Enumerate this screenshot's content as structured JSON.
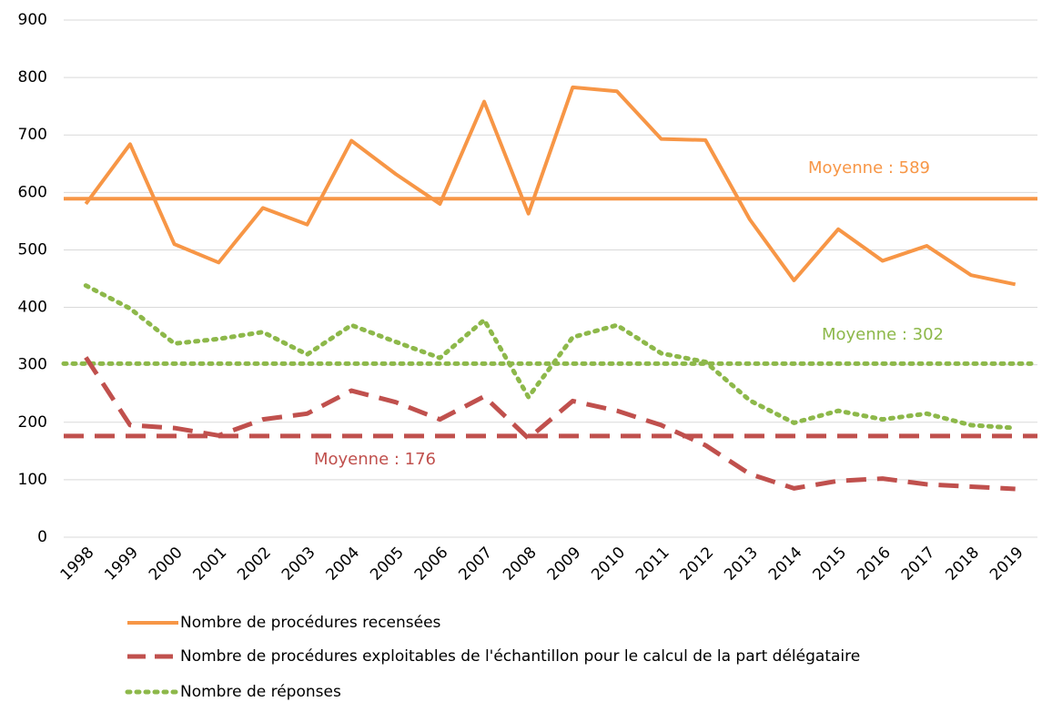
{
  "chart_data": {
    "type": "line",
    "categories": [
      "1998",
      "1999",
      "2000",
      "2001",
      "2002",
      "2003",
      "2004",
      "2005",
      "2006",
      "2007",
      "2008",
      "2009",
      "2010",
      "2011",
      "2012",
      "2013",
      "2014",
      "2015",
      "2016",
      "2017",
      "2018",
      "2019"
    ],
    "series": [
      {
        "name": "Nombre de procédures recensées",
        "color": "#f79646",
        "dash": "solid",
        "values": [
          580,
          684,
          510,
          478,
          573,
          544,
          690,
          632,
          580,
          758,
          563,
          783,
          776,
          693,
          691,
          553,
          447,
          536,
          481,
          507,
          456,
          440
        ]
      },
      {
        "name": "Nombre de procédures exploitables de l'échantillon pour le calcul de la part délégataire",
        "color": "#c0504d",
        "dash": "dashed",
        "values": [
          313,
          195,
          190,
          177,
          205,
          215,
          255,
          235,
          205,
          245,
          172,
          237,
          220,
          195,
          160,
          110,
          85,
          98,
          102,
          92,
          88,
          84
        ]
      },
      {
        "name": "Nombre de réponses",
        "color": "#8db84a",
        "dash": "dotted",
        "values": [
          438,
          398,
          337,
          345,
          357,
          318,
          369,
          340,
          312,
          378,
          244,
          348,
          369,
          320,
          305,
          238,
          199,
          220,
          205,
          215,
          195,
          190
        ]
      }
    ],
    "annotations": [
      {
        "text": "Moyenne : 589",
        "value": 589,
        "color": "#f79646",
        "dash": "solid"
      },
      {
        "text": "Moyenne : 302",
        "value": 302,
        "color": "#8db84a",
        "dash": "dotted"
      },
      {
        "text": "Moyenne : 176",
        "value": 176,
        "color": "#c0504d",
        "dash": "dashed"
      }
    ],
    "ylim": [
      0,
      900
    ],
    "yticks": [
      0,
      100,
      200,
      300,
      400,
      500,
      600,
      700,
      800,
      900
    ],
    "grid": true,
    "legend": "bottom"
  }
}
